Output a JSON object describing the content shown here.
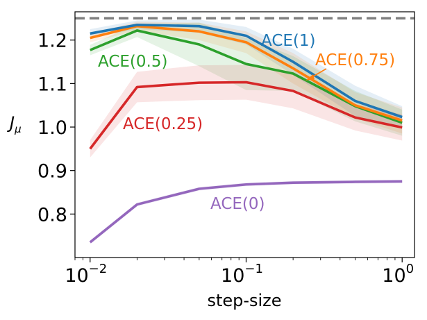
{
  "chart_data": {
    "type": "line",
    "xscale": "log",
    "xlim": [
      0.008,
      1.2
    ],
    "ylim": [
      0.7,
      1.265
    ],
    "xlabel": "step-size",
    "ylabel": "J",
    "ylabel_sub": "μ",
    "x": [
      0.01,
      0.02,
      0.05,
      0.1,
      0.2,
      0.5,
      1.0
    ],
    "x_ticks": [
      {
        "value": 0.01,
        "base": "10",
        "exp": "−2"
      },
      {
        "value": 0.1,
        "base": "10",
        "exp": "−1"
      },
      {
        "value": 1.0,
        "base": "10",
        "exp": "0"
      }
    ],
    "y_ticks": [
      {
        "value": 0.8,
        "label": "0.8"
      },
      {
        "value": 0.9,
        "label": "0.9"
      },
      {
        "value": 1.0,
        "label": "1.0"
      },
      {
        "value": 1.1,
        "label": "1.1"
      },
      {
        "value": 1.2,
        "label": "1.2"
      }
    ],
    "reference_line": {
      "y": 1.25,
      "color": "#7f7f7f",
      "style": "dashed"
    },
    "series": [
      {
        "name": "ACE(1)",
        "color": "#1f77b4",
        "values": [
          1.215,
          1.235,
          1.232,
          1.21,
          1.15,
          1.06,
          1.023
        ],
        "band": [
          0.01,
          0.01,
          0.015,
          0.02,
          0.03,
          0.035,
          0.025
        ]
      },
      {
        "name": "ACE(0.75)",
        "color": "#ff7f0e",
        "values": [
          1.205,
          1.232,
          1.22,
          1.195,
          1.135,
          1.05,
          1.015
        ],
        "band": [
          0.01,
          0.01,
          0.02,
          0.025,
          0.035,
          0.03,
          0.03
        ]
      },
      {
        "name": "ACE(0.5)",
        "color": "#2ca02c",
        "values": [
          1.177,
          1.222,
          1.19,
          1.145,
          1.123,
          1.048,
          1.01
        ],
        "band": [
          0.012,
          0.015,
          0.05,
          0.06,
          0.04,
          0.035,
          0.03
        ]
      },
      {
        "name": "ACE(0.25)",
        "color": "#d62728",
        "values": [
          0.95,
          1.092,
          1.102,
          1.103,
          1.083,
          1.022,
          0.999
        ],
        "band": [
          0.02,
          0.035,
          0.04,
          0.04,
          0.04,
          0.03,
          0.03
        ]
      },
      {
        "name": "ACE(0)",
        "color": "#9467bd",
        "values": [
          0.735,
          0.822,
          0.858,
          0.868,
          0.872,
          0.874,
          0.875
        ],
        "band": [
          0.004,
          0.004,
          0.004,
          0.004,
          0.004,
          0.004,
          0.004
        ]
      }
    ],
    "annotations": [
      {
        "text": "ACE(1)",
        "series": 0
      },
      {
        "text": "ACE(0.75)",
        "series": 1,
        "arrow": true
      },
      {
        "text": "ACE(0.5)",
        "series": 2
      },
      {
        "text": "ACE(0.25)",
        "series": 3
      },
      {
        "text": "ACE(0)",
        "series": 4
      }
    ]
  }
}
